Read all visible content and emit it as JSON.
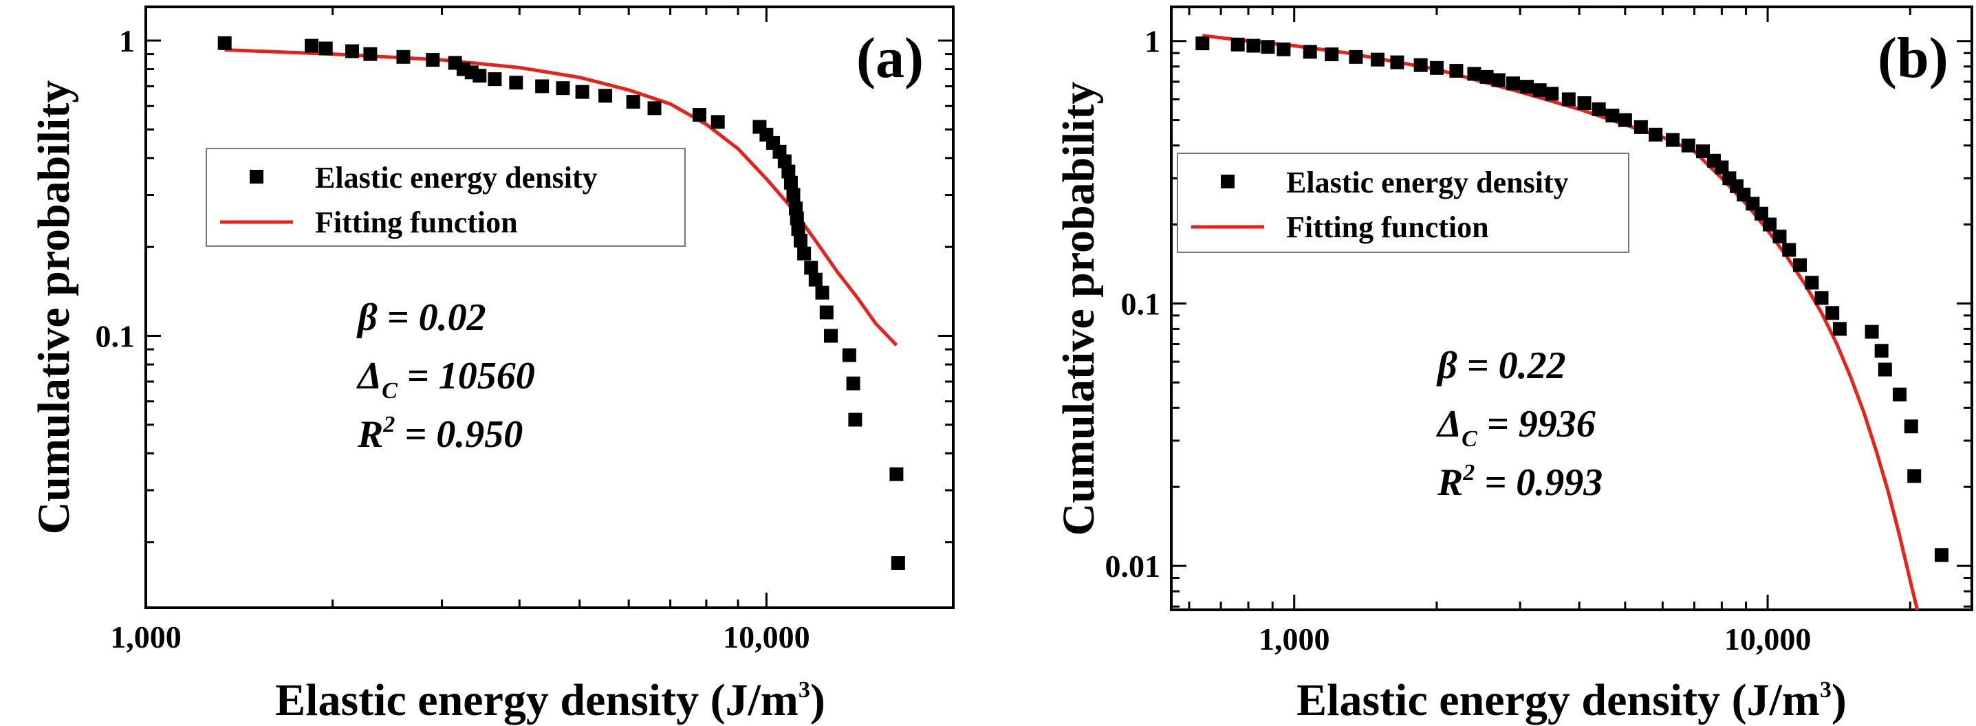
{
  "chart_data": [
    {
      "type": "scatter",
      "panel_label": "(a)",
      "xscale": "log",
      "yscale": "log",
      "xlim": [
        1000,
        20000
      ],
      "ylim": [
        0.012,
        1.3
      ],
      "xticks": [
        1000,
        10000
      ],
      "xtick_labels": [
        "1,000",
        "10,000"
      ],
      "yticks": [
        0.1,
        1
      ],
      "ytick_labels": [
        "0.1",
        "1"
      ],
      "xlabel": "Elastic energy density (J/m",
      "xlabel_sup": "3",
      "xlabel_end": ")",
      "ylabel": "Cumulative probability",
      "legend": {
        "position": "upper-left",
        "entries": [
          {
            "label": "Elastic energy density",
            "marker": "square",
            "color": "#000000"
          },
          {
            "label": "Fitting function",
            "marker": "line",
            "color": "#e8211a"
          }
        ]
      },
      "annotations": {
        "beta": "β = 0.02",
        "delta_main": "Δ",
        "delta_sub": "C",
        "delta_rest": " = 10560",
        "r2_main": "R",
        "r2_sup": "2",
        "r2_rest": " = 0.950"
      },
      "series": [
        {
          "name": "Elastic energy density",
          "x": [
            1340,
            1850,
            1950,
            2150,
            2300,
            2600,
            2900,
            3150,
            3250,
            3350,
            3450,
            3650,
            3950,
            4350,
            4700,
            5050,
            5500,
            6100,
            6600,
            7800,
            8350,
            9750,
            10000,
            10250,
            10500,
            10700,
            10850,
            10950,
            11050,
            11150,
            11200,
            11250,
            11350,
            11500,
            11800,
            12000,
            12300,
            12500,
            12700,
            13600,
            13800,
            13900,
            16200,
            16300
          ],
          "y": [
            0.98,
            0.96,
            0.94,
            0.92,
            0.9,
            0.88,
            0.86,
            0.84,
            0.8,
            0.78,
            0.76,
            0.74,
            0.72,
            0.7,
            0.69,
            0.67,
            0.65,
            0.62,
            0.59,
            0.56,
            0.53,
            0.51,
            0.48,
            0.45,
            0.42,
            0.39,
            0.36,
            0.33,
            0.3,
            0.27,
            0.25,
            0.23,
            0.21,
            0.19,
            0.17,
            0.155,
            0.14,
            0.12,
            0.1,
            0.086,
            0.069,
            0.052,
            0.034,
            0.017
          ]
        },
        {
          "name": "Fitting function",
          "type": "line",
          "color": "#e8211a",
          "x": [
            1340,
            2000,
            3000,
            4000,
            5000,
            6000,
            7000,
            8000,
            9000,
            10000,
            11000,
            12000,
            13000,
            14000,
            15000,
            16200
          ],
          "y": [
            0.93,
            0.9,
            0.86,
            0.81,
            0.75,
            0.68,
            0.61,
            0.52,
            0.43,
            0.34,
            0.27,
            0.21,
            0.165,
            0.135,
            0.11,
            0.093
          ]
        }
      ]
    },
    {
      "type": "scatter",
      "panel_label": "(b)",
      "xscale": "log",
      "yscale": "log",
      "xlim": [
        550,
        27000
      ],
      "ylim": [
        0.0068,
        1.35
      ],
      "xticks": [
        1000,
        10000
      ],
      "xtick_labels": [
        "1,000",
        "10,000"
      ],
      "yticks": [
        0.01,
        0.1,
        1
      ],
      "ytick_labels": [
        "0.01",
        "0.1",
        "1"
      ],
      "xlabel": "Elastic energy density (J/m",
      "xlabel_sup": "3",
      "xlabel_end": ")",
      "ylabel": "Cumulative probability",
      "legend": {
        "position": "middle-left",
        "entries": [
          {
            "label": "Elastic energy density",
            "marker": "square",
            "color": "#000000"
          },
          {
            "label": "Fitting function",
            "marker": "line",
            "color": "#e8211a"
          }
        ]
      },
      "annotations": {
        "beta": "β = 0.22",
        "delta_main": "Δ",
        "delta_sub": "C",
        "delta_rest": " = 9936",
        "r2_main": "R",
        "r2_sup": "2",
        "r2_rest": " = 0.993"
      },
      "series": [
        {
          "name": "Elastic energy density",
          "x": [
            640,
            760,
            820,
            880,
            950,
            1080,
            1200,
            1350,
            1500,
            1650,
            1850,
            2000,
            2200,
            2400,
            2550,
            2700,
            2900,
            3100,
            3300,
            3500,
            3800,
            4100,
            4400,
            4700,
            5000,
            5400,
            5800,
            6300,
            6800,
            7300,
            7700,
            8000,
            8300,
            8600,
            8900,
            9300,
            9700,
            10100,
            10600,
            11100,
            11700,
            12400,
            13000,
            13700,
            14200,
            16600,
            17400,
            17700,
            19000,
            20100,
            20400,
            23300
          ],
          "y": [
            0.98,
            0.97,
            0.96,
            0.95,
            0.93,
            0.91,
            0.89,
            0.87,
            0.85,
            0.83,
            0.81,
            0.79,
            0.77,
            0.75,
            0.73,
            0.71,
            0.69,
            0.67,
            0.65,
            0.63,
            0.6,
            0.58,
            0.55,
            0.52,
            0.5,
            0.47,
            0.44,
            0.42,
            0.4,
            0.38,
            0.35,
            0.33,
            0.3,
            0.28,
            0.26,
            0.24,
            0.22,
            0.2,
            0.18,
            0.16,
            0.14,
            0.12,
            0.105,
            0.092,
            0.08,
            0.078,
            0.066,
            0.056,
            0.045,
            0.034,
            0.022,
            0.011
          ]
        },
        {
          "name": "Fitting function",
          "type": "line",
          "color": "#e8211a",
          "x": [
            640,
            800,
            1000,
            1300,
            1600,
            2000,
            2500,
            3000,
            3500,
            4000,
            5000,
            6000,
            7000,
            8000,
            9000,
            10000,
            11000,
            12000,
            13000,
            14000,
            15000,
            16000,
            17000,
            18000,
            19000,
            20000,
            20700
          ],
          "y": [
            1.05,
            1.0,
            0.96,
            0.9,
            0.84,
            0.78,
            0.7,
            0.64,
            0.59,
            0.55,
            0.48,
            0.43,
            0.38,
            0.3,
            0.24,
            0.19,
            0.15,
            0.118,
            0.092,
            0.07,
            0.052,
            0.038,
            0.027,
            0.019,
            0.013,
            0.0088,
            0.0068
          ]
        }
      ]
    }
  ]
}
